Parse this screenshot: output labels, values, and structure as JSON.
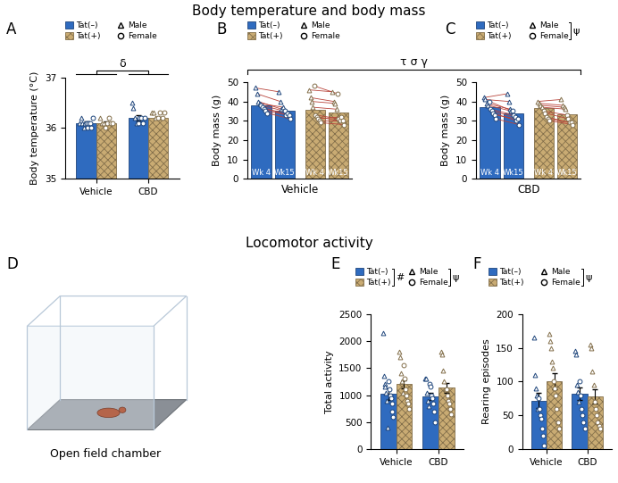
{
  "titles": [
    "Body temperature and body mass",
    "Locomotor activity"
  ],
  "sexes": [
    {
      "name": "Male",
      "marker": "triangle"
    },
    {
      "name": "Female",
      "marker": "circle"
    }
  ],
  "chart_data": [
    {
      "panel": "A",
      "type": "bar",
      "categories": [
        "Vehicle",
        "CBD"
      ],
      "y_label": "Body temperature (°C)",
      "ylim": [
        35,
        37
      ],
      "yticks": [
        35,
        36,
        37
      ],
      "legend": "upper left",
      "series": [
        {
          "name": "Tat(–)",
          "color": "#2f6bbf",
          "values": [
            36.1,
            36.2
          ],
          "errors": [
            0.03,
            0.05
          ],
          "points": [
            {
              "Male": [
                36.1,
                36.2,
                36.1,
                36.0,
                36.1
              ],
              "Female": [
                36.1,
                36.0,
                36.1,
                36.1,
                36.0,
                36.2
              ]
            },
            {
              "Male": [
                36.5,
                36.4,
                36.2,
                36.1
              ],
              "Female": [
                36.1,
                36.2,
                36.2,
                36.1,
                36.2
              ]
            }
          ]
        },
        {
          "name": "Tat(+)",
          "color": "#c9ab73",
          "values": [
            36.1,
            36.2
          ],
          "errors": [
            0.03,
            0.02
          ],
          "points": [
            {
              "Male": [
                36.2,
                36.1,
                36.1
              ],
              "Female": [
                36.0,
                36.1,
                36.2,
                36.1,
                36.1
              ]
            },
            {
              "Male": [
                36.3,
                36.3,
                36.2
              ],
              "Female": [
                36.2,
                36.3,
                36.2,
                36.3
              ]
            }
          ]
        }
      ],
      "annotations": [
        {
          "text": "δ",
          "between": [
            "Vehicle",
            "CBD"
          ]
        }
      ],
      "legend_marks": []
    },
    {
      "panel": "B",
      "type": "paired_bar",
      "x_label": "Vehicle",
      "categories": [
        "Wk 4",
        "Wk15"
      ],
      "y_label": "Body mass (g)",
      "ylim": [
        0,
        50
      ],
      "yticks": [
        0,
        10,
        20,
        30,
        40,
        50
      ],
      "tick_labels": "y",
      "legend": "upper left",
      "series": [
        {
          "name": "Tat(–)",
          "color": "#2f6bbf",
          "values": [
            38,
            35
          ],
          "pairs": {
            "Male": [
              [
                47,
                45
              ],
              [
                44,
                40
              ],
              [
                40,
                36
              ],
              [
                39,
                37
              ]
            ],
            "Female": [
              [
                38,
                35
              ],
              [
                37,
                33
              ],
              [
                36,
                34
              ],
              [
                35,
                33
              ],
              [
                34,
                31
              ]
            ]
          }
        },
        {
          "name": "Tat(+)",
          "color": "#c9ab73",
          "values": [
            35.5,
            34.5
          ],
          "pairs": {
            "Male": [
              [
                46,
                45
              ],
              [
                42,
                40
              ],
              [
                40,
                39
              ],
              [
                37,
                36
              ]
            ],
            "Female": [
              [
                48,
                44
              ],
              [
                33,
                31
              ],
              [
                32,
                30
              ],
              [
                31,
                32
              ],
              [
                30,
                30
              ],
              [
                29,
                28
              ]
            ]
          }
        }
      ],
      "legend_marks": []
    },
    {
      "panel": "C",
      "type": "paired_bar",
      "x_label": "CBD",
      "categories": [
        "Wk 4",
        "Wk15"
      ],
      "y_label": "Body mass (g)",
      "ylim": [
        0,
        50
      ],
      "yticks": [
        0,
        10,
        20,
        30,
        40,
        50
      ],
      "tick_labels": "y",
      "legend": "upper left",
      "series": [
        {
          "name": "Tat(–)",
          "color": "#2f6bbf",
          "values": [
            37,
            34
          ],
          "pairs": {
            "Male": [
              [
                42,
                44
              ],
              [
                41,
                40
              ],
              [
                39,
                36
              ],
              [
                38,
                35
              ]
            ],
            "Female": [
              [
                40,
                35
              ],
              [
                36,
                33
              ],
              [
                35,
                32
              ],
              [
                34,
                30
              ],
              [
                33,
                31
              ],
              [
                31,
                28
              ]
            ]
          }
        },
        {
          "name": "Tat(+)",
          "color": "#c9ab73",
          "values": [
            36.5,
            33.5
          ],
          "pairs": {
            "Male": [
              [
                40,
                41
              ],
              [
                39,
                38
              ],
              [
                38,
                37
              ],
              [
                37,
                36
              ]
            ],
            "Female": [
              [
                35,
                33
              ],
              [
                34,
                31
              ],
              [
                32,
                29
              ],
              [
                31,
                29
              ],
              [
                30,
                28
              ]
            ]
          }
        }
      ],
      "legend_marks": [
        {
          "text": "ψ",
          "entries": [
            "Male",
            "Female"
          ]
        }
      ]
    },
    {
      "panel": "E",
      "type": "bar",
      "categories": [
        "Vehicle",
        "CBD"
      ],
      "y_label": "Total activity",
      "ylim": [
        0,
        2500
      ],
      "yticks": [
        0,
        500,
        1000,
        1500,
        2000,
        2500
      ],
      "legend": "upper left",
      "series": [
        {
          "name": "Tat(–)",
          "color": "#2f6bbf",
          "values": [
            1020,
            980
          ],
          "errors": [
            110,
            70
          ],
          "points": [
            {
              "Male": [
                2150,
                1350,
                1200,
                1150,
                1050,
                900,
                400
              ],
              "Female": [
                1250,
                1100,
                1000,
                950,
                850,
                700,
                600
              ]
            },
            {
              "Male": [
                1300,
                1300,
                1050,
                900,
                800
              ],
              "Female": [
                1200,
                1150,
                1000,
                950,
                850,
                700,
                500
              ]
            }
          ]
        },
        {
          "name": "Tat(+)",
          "color": "#c9ab73",
          "values": [
            1200,
            1140
          ],
          "errors": [
            80,
            90
          ],
          "points": [
            {
              "Male": [
                1800,
                1700,
                1400,
                1250,
                1050
              ],
              "Female": [
                1550,
                1300,
                1100,
                1000,
                900,
                850,
                750
              ]
            },
            {
              "Male": [
                1800,
                1750,
                1450,
                1250,
                1100
              ],
              "Female": [
                1100,
                1000,
                900,
                850,
                750,
                650
              ]
            }
          ]
        }
      ],
      "legend_marks": [
        {
          "text": "#",
          "entries": [
            "Tat(–)",
            "Tat(+)"
          ]
        },
        {
          "text": "ψ",
          "entries": [
            "Male",
            "Female"
          ]
        }
      ]
    },
    {
      "panel": "F",
      "type": "bar",
      "categories": [
        "Vehicle",
        "CBD"
      ],
      "y_label": "Rearing episodes",
      "ylim": [
        0,
        200
      ],
      "yticks": [
        0,
        50,
        100,
        150,
        200
      ],
      "legend": "upper left",
      "series": [
        {
          "name": "Tat(–)",
          "color": "#2f6bbf",
          "values": [
            72,
            82
          ],
          "errors": [
            11,
            9
          ],
          "points": [
            {
              "Male": [
                165,
                110,
                90,
                80,
                60
              ],
              "Female": [
                75,
                60,
                50,
                45,
                30,
                20,
                5
              ]
            },
            {
              "Male": [
                145,
                140,
                95,
                85,
                70
              ],
              "Female": [
                100,
                80,
                60,
                50,
                40,
                30
              ]
            }
          ]
        },
        {
          "name": "Tat(+)",
          "color": "#c9ab73",
          "values": [
            100,
            78
          ],
          "errors": [
            12,
            10
          ],
          "points": [
            {
              "Male": [
                170,
                160,
                150,
                130,
                120
              ],
              "Female": [
                100,
                90,
                80,
                60,
                40,
                40,
                30
              ]
            },
            {
              "Male": [
                155,
                150,
                115,
                95
              ],
              "Female": [
                70,
                60,
                50,
                40,
                35,
                30
              ]
            }
          ]
        }
      ],
      "legend_marks": [
        {
          "text": "ψ",
          "entries": [
            "Male",
            "Female"
          ]
        }
      ]
    }
  ],
  "diagram": {
    "panel": "D",
    "label": "Open field chamber"
  },
  "figure_annotations": [
    {
      "text": "τ σ γ",
      "panels": [
        "B",
        "C"
      ]
    }
  ]
}
